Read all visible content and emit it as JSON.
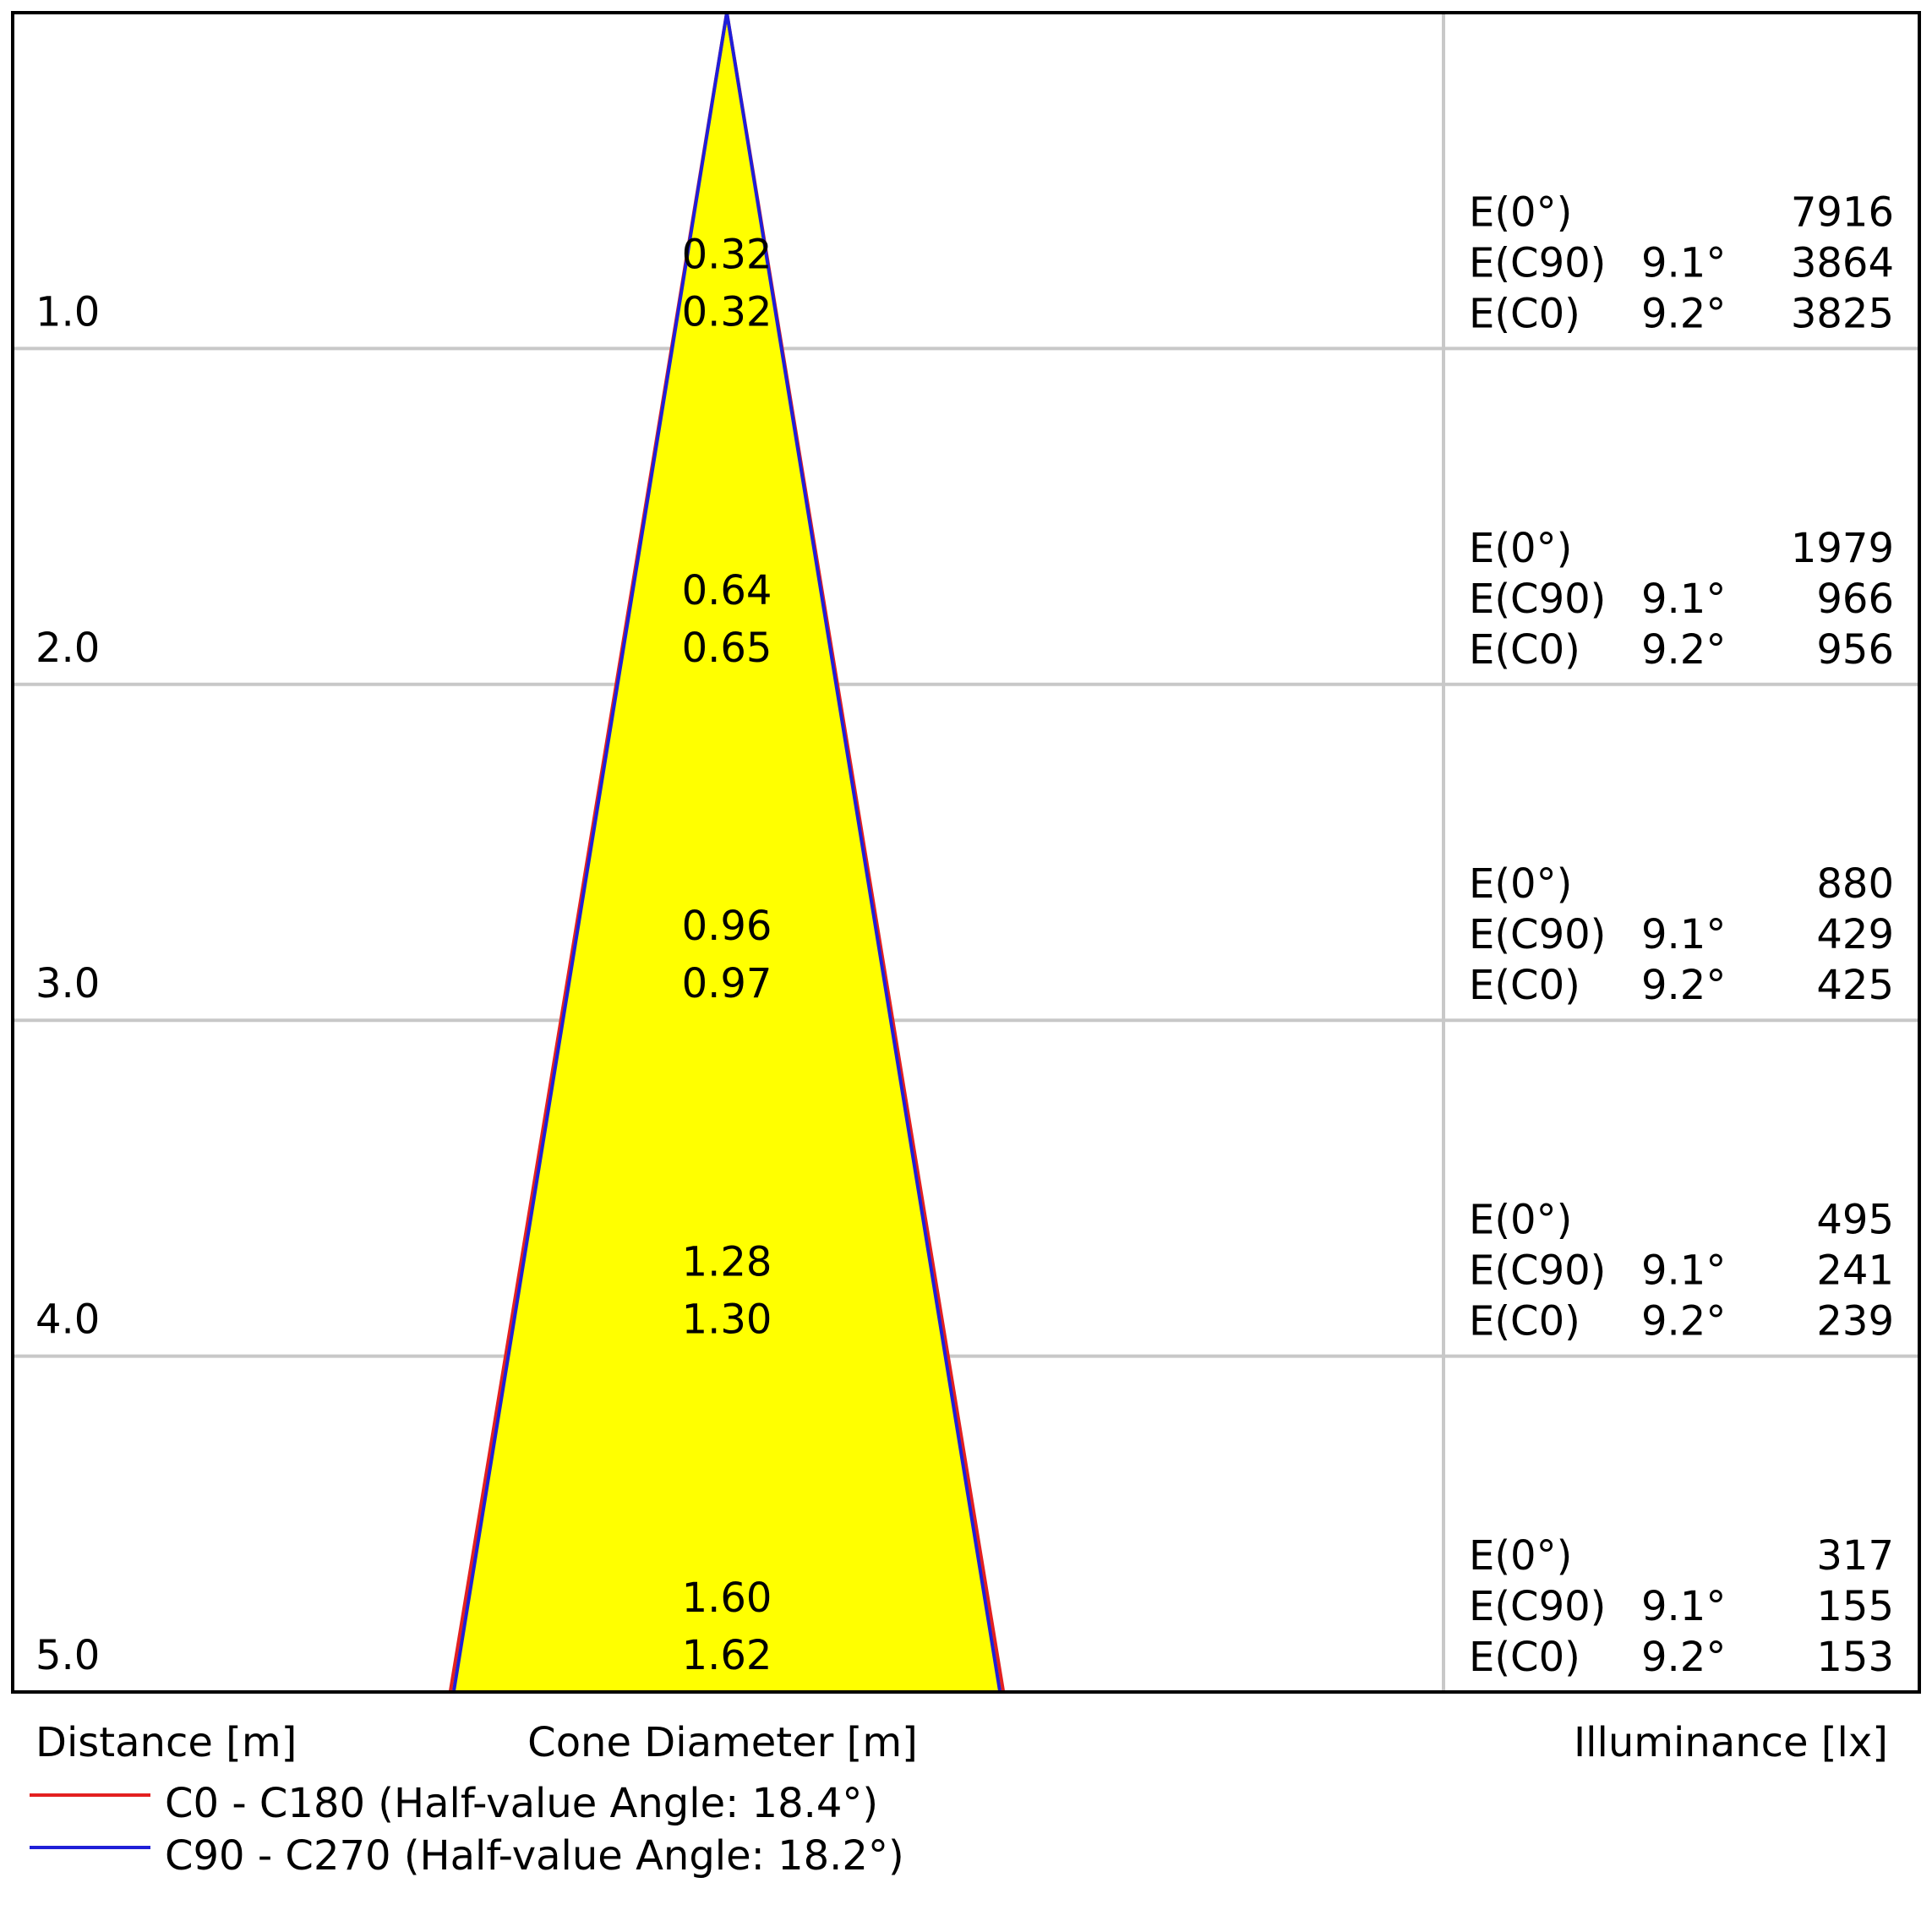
{
  "chart_data": {
    "type": "area",
    "title": "",
    "distances": [
      "1.0",
      "2.0",
      "3.0",
      "4.0",
      "5.0"
    ],
    "x_max_distance": 5.0,
    "cone_diameters": [
      {
        "c90": "0.32",
        "c0": "0.32"
      },
      {
        "c90": "0.64",
        "c0": "0.65"
      },
      {
        "c90": "0.96",
        "c0": "0.97"
      },
      {
        "c90": "1.28",
        "c0": "1.30"
      },
      {
        "c90": "1.60",
        "c0": "1.62"
      }
    ],
    "illuminance": [
      {
        "e0": "7916",
        "ec90": "3864",
        "ec0": "3825"
      },
      {
        "e0": "1979",
        "ec90": "966",
        "ec0": "956"
      },
      {
        "e0": "880",
        "ec90": "429",
        "ec0": "425"
      },
      {
        "e0": "495",
        "ec90": "241",
        "ec0": "239"
      },
      {
        "e0": "317",
        "ec90": "155",
        "ec0": "153"
      }
    ],
    "row_labels": {
      "e0": "E(0°)",
      "ec90": "E(C90)",
      "ec0": "E(C0)"
    },
    "half_angles": {
      "c90": "9.1°",
      "c0": "9.2°"
    },
    "axis_labels": {
      "distance": "Distance [m]",
      "cone": "Cone Diameter [m]",
      "illuminance": "Illuminance [lx]"
    },
    "legend": [
      {
        "label": "C0 - C180 (Half-value Angle: 18.4°)",
        "color": "#e32020"
      },
      {
        "label": "C90 - C270 (Half-value Angle: 18.2°)",
        "color": "#1f1fd8"
      }
    ],
    "colors": {
      "cone_fill": "#ffff00",
      "grid": "#c8c8c8",
      "frame": "#000000"
    }
  }
}
